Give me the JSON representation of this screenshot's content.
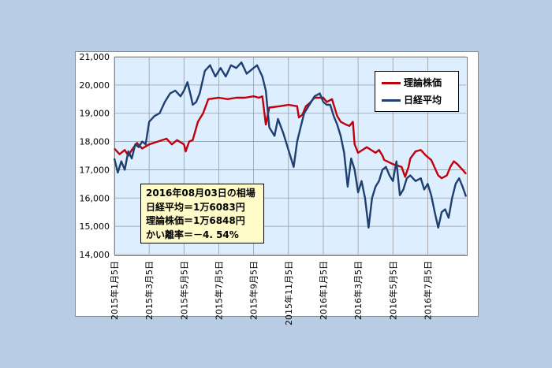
{
  "chart_data": {
    "type": "line",
    "title": "",
    "xlabel": "",
    "ylabel": "",
    "ylim": [
      14000,
      21000
    ],
    "yticks": [
      14000,
      15000,
      16000,
      17000,
      18000,
      19000,
      20000,
      21000
    ],
    "ytick_labels": [
      "14,000",
      "15,000",
      "16,000",
      "17,000",
      "18,000",
      "19,000",
      "20,000",
      "21,000"
    ],
    "xlim": [
      0,
      20.2
    ],
    "xticks": [
      0,
      2,
      4,
      6,
      8,
      10,
      12,
      14,
      16,
      18
    ],
    "xtick_labels": [
      "2015年1月5日",
      "2015年3月5日",
      "2015年5月5日",
      "2015年7月5日",
      "2015年9月5日",
      "2015年11月5日",
      "2016年1月5日",
      "2016年3月5日",
      "2016年5月5日",
      "2016年7月5日"
    ],
    "grid": true,
    "legend_position": "top-right",
    "series": [
      {
        "name": "理論株価",
        "color": "#c0000b",
        "points": [
          [
            0,
            17750
          ],
          [
            0.3,
            17550
          ],
          [
            0.6,
            17700
          ],
          [
            0.8,
            17500
          ],
          [
            1.0,
            17700
          ],
          [
            1.3,
            17950
          ],
          [
            1.6,
            17750
          ],
          [
            2.0,
            17900
          ],
          [
            2.5,
            18000
          ],
          [
            3.0,
            18100
          ],
          [
            3.3,
            17900
          ],
          [
            3.6,
            18050
          ],
          [
            4.0,
            17900
          ],
          [
            4.1,
            17650
          ],
          [
            4.3,
            18000
          ],
          [
            4.5,
            18050
          ],
          [
            4.8,
            18700
          ],
          [
            5.1,
            19000
          ],
          [
            5.4,
            19500
          ],
          [
            6.0,
            19550
          ],
          [
            6.5,
            19500
          ],
          [
            7.0,
            19550
          ],
          [
            7.5,
            19550
          ],
          [
            8.0,
            19600
          ],
          [
            8.3,
            19550
          ],
          [
            8.5,
            19600
          ],
          [
            8.7,
            18600
          ],
          [
            8.9,
            19200
          ],
          [
            9.5,
            19250
          ],
          [
            10.0,
            19300
          ],
          [
            10.5,
            19250
          ],
          [
            10.6,
            18850
          ],
          [
            10.8,
            18950
          ],
          [
            11.0,
            19250
          ],
          [
            11.2,
            19350
          ],
          [
            11.5,
            19550
          ],
          [
            12.0,
            19550
          ],
          [
            12.2,
            19400
          ],
          [
            12.5,
            19500
          ],
          [
            12.8,
            18900
          ],
          [
            13.0,
            18700
          ],
          [
            13.3,
            18600
          ],
          [
            13.5,
            18550
          ],
          [
            13.7,
            18700
          ],
          [
            13.8,
            17900
          ],
          [
            14.0,
            17600
          ],
          [
            14.5,
            17800
          ],
          [
            15.0,
            17600
          ],
          [
            15.2,
            17700
          ],
          [
            15.4,
            17500
          ],
          [
            15.5,
            17350
          ],
          [
            16.0,
            17200
          ],
          [
            16.5,
            17100
          ],
          [
            16.7,
            16750
          ],
          [
            16.9,
            17100
          ],
          [
            17.0,
            17400
          ],
          [
            17.3,
            17650
          ],
          [
            17.6,
            17700
          ],
          [
            17.9,
            17500
          ],
          [
            18.2,
            17350
          ],
          [
            18.6,
            16800
          ],
          [
            18.8,
            16700
          ],
          [
            19.1,
            16800
          ],
          [
            19.3,
            17100
          ],
          [
            19.5,
            17300
          ],
          [
            19.7,
            17200
          ],
          [
            20.0,
            17000
          ],
          [
            20.2,
            16850
          ]
        ]
      },
      {
        "name": "日経平均",
        "color": "#1f3f70",
        "points": [
          [
            0,
            17400
          ],
          [
            0.2,
            16900
          ],
          [
            0.4,
            17300
          ],
          [
            0.6,
            17000
          ],
          [
            0.8,
            17650
          ],
          [
            1.0,
            17400
          ],
          [
            1.2,
            17900
          ],
          [
            1.4,
            17800
          ],
          [
            1.6,
            18000
          ],
          [
            1.8,
            17900
          ],
          [
            2.0,
            18700
          ],
          [
            2.3,
            18900
          ],
          [
            2.6,
            19000
          ],
          [
            2.9,
            19400
          ],
          [
            3.2,
            19700
          ],
          [
            3.5,
            19800
          ],
          [
            3.8,
            19600
          ],
          [
            4.0,
            19800
          ],
          [
            4.2,
            20100
          ],
          [
            4.4,
            19600
          ],
          [
            4.5,
            19300
          ],
          [
            4.7,
            19400
          ],
          [
            4.9,
            19700
          ],
          [
            5.2,
            20500
          ],
          [
            5.5,
            20700
          ],
          [
            5.8,
            20300
          ],
          [
            6.1,
            20600
          ],
          [
            6.4,
            20300
          ],
          [
            6.7,
            20700
          ],
          [
            7.0,
            20600
          ],
          [
            7.3,
            20800
          ],
          [
            7.6,
            20400
          ],
          [
            7.9,
            20550
          ],
          [
            8.2,
            20700
          ],
          [
            8.5,
            20300
          ],
          [
            8.7,
            19800
          ],
          [
            8.9,
            18500
          ],
          [
            9.2,
            18200
          ],
          [
            9.4,
            18800
          ],
          [
            9.7,
            18300
          ],
          [
            10.0,
            17700
          ],
          [
            10.3,
            17100
          ],
          [
            10.5,
            18000
          ],
          [
            10.7,
            18500
          ],
          [
            10.9,
            19000
          ],
          [
            11.2,
            19300
          ],
          [
            11.5,
            19600
          ],
          [
            11.8,
            19700
          ],
          [
            12.0,
            19400
          ],
          [
            12.2,
            19300
          ],
          [
            12.4,
            19300
          ],
          [
            12.6,
            18900
          ],
          [
            12.8,
            18600
          ],
          [
            13.0,
            18200
          ],
          [
            13.2,
            17600
          ],
          [
            13.4,
            16400
          ],
          [
            13.6,
            17400
          ],
          [
            13.8,
            17000
          ],
          [
            14.0,
            16200
          ],
          [
            14.2,
            16600
          ],
          [
            14.4,
            16000
          ],
          [
            14.6,
            14950
          ],
          [
            14.8,
            16000
          ],
          [
            15.0,
            16400
          ],
          [
            15.2,
            16600
          ],
          [
            15.4,
            17000
          ],
          [
            15.6,
            17100
          ],
          [
            15.8,
            16800
          ],
          [
            16.0,
            16600
          ],
          [
            16.2,
            17300
          ],
          [
            16.4,
            16100
          ],
          [
            16.6,
            16300
          ],
          [
            16.8,
            16700
          ],
          [
            17.0,
            16800
          ],
          [
            17.3,
            16600
          ],
          [
            17.6,
            16700
          ],
          [
            17.8,
            16300
          ],
          [
            18.0,
            16500
          ],
          [
            18.2,
            16100
          ],
          [
            18.4,
            15500
          ],
          [
            18.6,
            14950
          ],
          [
            18.8,
            15500
          ],
          [
            19.0,
            15600
          ],
          [
            19.2,
            15300
          ],
          [
            19.4,
            16000
          ],
          [
            19.6,
            16500
          ],
          [
            19.8,
            16700
          ],
          [
            20.0,
            16400
          ],
          [
            20.2,
            16050
          ]
        ]
      }
    ]
  },
  "info": {
    "line1": "2016年08月03日の相場",
    "line2": "日経平均＝1万6083円",
    "line3": "理論株価＝1万6848円",
    "line4": "かい離率＝－4. 54%"
  }
}
